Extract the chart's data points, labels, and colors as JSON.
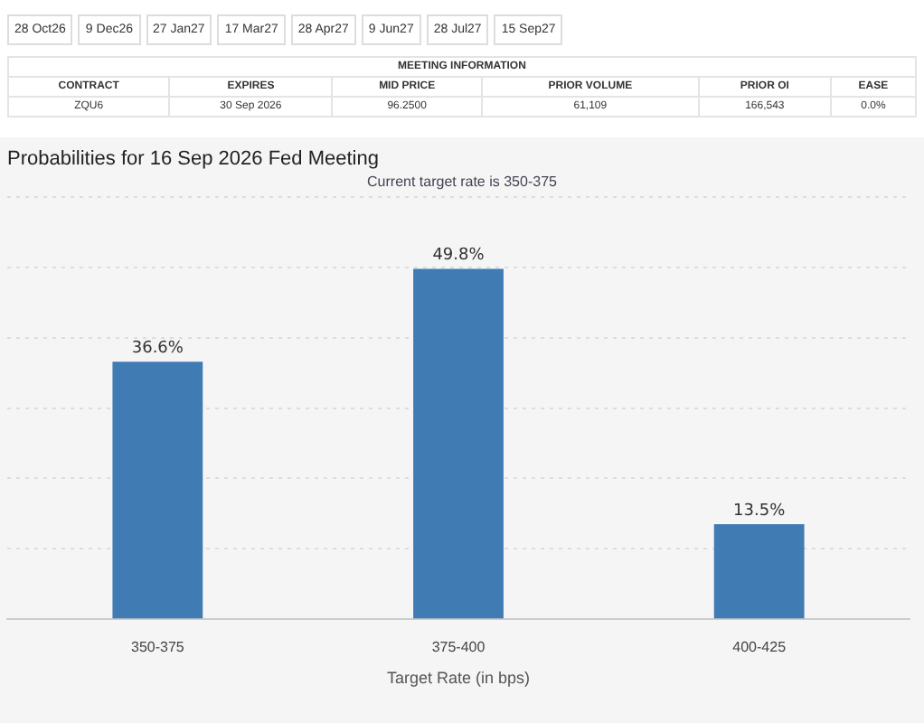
{
  "chart_data": {
    "type": "bar",
    "title": "Probabilities for 16 Sep 2026 Fed Meeting",
    "subtitle": "Current target rate is 350-375",
    "xlabel": "Target Rate (in bps)",
    "categories": [
      "350-375",
      "375-400",
      "400-425"
    ],
    "values": [
      36.6,
      49.8,
      13.5
    ],
    "value_labels": [
      "36.6%",
      "49.8%",
      "13.5%"
    ],
    "color": "#417bb3",
    "grid": "y",
    "legend": false,
    "annotations": [
      "28 Oct26",
      "9 Dec26",
      "27 Jan27",
      "17 Mar27",
      "28 Apr27",
      "9 Jun27",
      "28 Jul27",
      "15 Sep27",
      "MEETING INFORMATION",
      "CONTRACT",
      "EXPIRES",
      "MID PRICE",
      "PRIOR VOLUME",
      "PRIOR OI",
      "EASE",
      "ZQU6",
      "30 Sep 2026",
      "96.2500",
      "61,109",
      "166,543",
      "0.0%"
    ]
  }
}
